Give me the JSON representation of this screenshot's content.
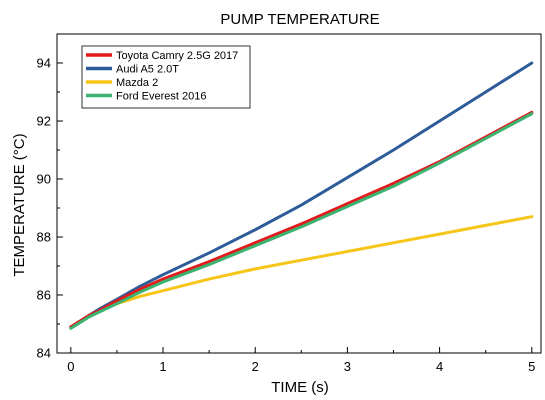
{
  "chart_data": {
    "type": "line",
    "title": "PUMP TEMPERATURE",
    "xlabel": "TIME (s)",
    "ylabel": "TEMPERATURE (°C)",
    "xlim": [
      -0.15,
      5.1
    ],
    "ylim": [
      84,
      95
    ],
    "x_ticks": [
      0,
      1,
      2,
      3,
      4,
      5
    ],
    "y_ticks": [
      84,
      86,
      88,
      90,
      92,
      94
    ],
    "x_minor_step": 0.5,
    "y_minor_step": 1,
    "grid": false,
    "legend_position": "top-left",
    "series": [
      {
        "name": "Toyota Camry 2.5G 2017",
        "color": "#e31a1c",
        "x": [
          0,
          0.05,
          0.1,
          0.2,
          0.3,
          0.5,
          0.75,
          1,
          1.5,
          2,
          2.5,
          3,
          3.5,
          4,
          4.5,
          5
        ],
        "y": [
          84.9,
          85.0,
          85.1,
          85.3,
          85.45,
          85.8,
          86.2,
          86.55,
          87.15,
          87.8,
          88.45,
          89.15,
          89.85,
          90.6,
          91.45,
          92.3
        ]
      },
      {
        "name": "Audi A5 2.0T",
        "color": "#2e5c99",
        "x": [
          0,
          0.05,
          0.1,
          0.2,
          0.3,
          0.5,
          0.75,
          1,
          1.5,
          2,
          2.5,
          3,
          3.5,
          4,
          4.5,
          5
        ],
        "y": [
          84.9,
          85.0,
          85.1,
          85.3,
          85.5,
          85.85,
          86.3,
          86.7,
          87.45,
          88.25,
          89.1,
          90.05,
          91.0,
          92.0,
          93.0,
          94.0
        ]
      },
      {
        "name": "Mazda 2",
        "color": "#f5c518",
        "x": [
          0,
          0.05,
          0.1,
          0.2,
          0.3,
          0.5,
          0.75,
          1,
          1.5,
          2,
          2.5,
          3,
          3.5,
          4,
          4.5,
          5
        ],
        "y": [
          84.9,
          85.0,
          85.1,
          85.3,
          85.45,
          85.7,
          85.95,
          86.15,
          86.55,
          86.9,
          87.2,
          87.5,
          87.8,
          88.1,
          88.4,
          88.7
        ]
      },
      {
        "name": "Ford Everest 2016",
        "color": "#3cb371",
        "x": [
          0,
          0.05,
          0.1,
          0.2,
          0.3,
          0.5,
          0.75,
          1,
          1.5,
          2,
          2.5,
          3,
          3.5,
          4,
          4.5,
          5
        ],
        "y": [
          84.85,
          84.95,
          85.05,
          85.25,
          85.4,
          85.7,
          86.1,
          86.45,
          87.05,
          87.7,
          88.35,
          89.05,
          89.75,
          90.55,
          91.4,
          92.25
        ]
      }
    ]
  }
}
